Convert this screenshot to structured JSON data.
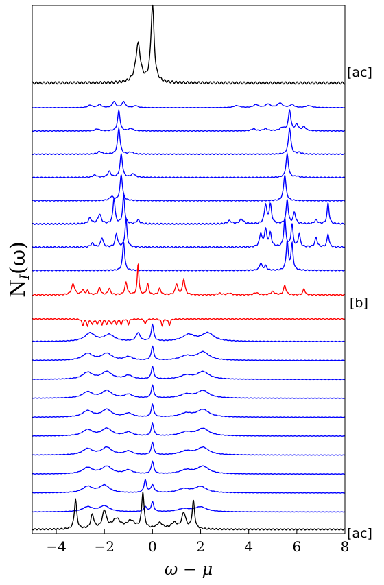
{
  "chart_data": {
    "type": "line",
    "title": "",
    "xlabel": "ω − μ",
    "ylabel": "N_I(ω)",
    "xlim": [
      -5,
      8
    ],
    "x_ticks": [
      -4,
      -2,
      0,
      2,
      4,
      6,
      8
    ],
    "grid": false,
    "legend": "none",
    "curve_labels": [
      {
        "text": "[ac]",
        "attach": "top-curve"
      },
      {
        "text": "[b]",
        "attach": "red-curves"
      },
      {
        "text": "[ac]",
        "attach": "bottom-curve"
      }
    ],
    "series": [
      {
        "role": "top",
        "color": "#000000",
        "baseline_rank": 0,
        "amp": 1.0,
        "peaks": [
          [
            -0.6,
            0.5,
            0.12
          ],
          [
            0.0,
            1.0,
            0.08
          ]
        ]
      },
      {
        "role": "stack",
        "color": "#0000ff",
        "baseline_rank": 1,
        "amp": 0.35,
        "peaks": [
          [
            -2.6,
            0.25,
            0.1
          ],
          [
            -2.2,
            0.3,
            0.1
          ],
          [
            -1.6,
            0.6,
            0.08
          ],
          [
            -1.2,
            0.6,
            0.08
          ],
          [
            -0.7,
            0.2,
            0.1
          ],
          [
            3.5,
            0.2,
            0.15
          ],
          [
            4.3,
            0.3,
            0.12
          ],
          [
            4.8,
            0.35,
            0.12
          ],
          [
            5.3,
            0.45,
            0.12
          ],
          [
            5.8,
            0.3,
            0.1
          ],
          [
            6.5,
            0.2,
            0.15
          ]
        ]
      },
      {
        "role": "stack",
        "color": "#0000ff",
        "baseline_rank": 2,
        "amp": 0.7,
        "peaks": [
          [
            -2.3,
            0.1,
            0.1
          ],
          [
            -1.4,
            1.0,
            0.06
          ],
          [
            -0.9,
            0.12,
            0.1
          ],
          [
            4.2,
            0.1,
            0.1
          ],
          [
            4.7,
            0.1,
            0.1
          ],
          [
            5.4,
            0.15,
            0.12
          ],
          [
            5.7,
            1.0,
            0.06
          ],
          [
            6.0,
            0.3,
            0.08
          ],
          [
            6.3,
            0.2,
            0.08
          ]
        ]
      },
      {
        "role": "stack",
        "color": "#0000ff",
        "baseline_rank": 3,
        "amp": 0.9,
        "peaks": [
          [
            -2.2,
            0.1,
            0.1
          ],
          [
            -1.4,
            1.0,
            0.06
          ],
          [
            -0.9,
            0.08,
            0.1
          ],
          [
            5.7,
            1.0,
            0.06
          ],
          [
            6.1,
            0.06,
            0.1
          ]
        ]
      },
      {
        "role": "stack",
        "color": "#0000ff",
        "baseline_rank": 4,
        "amp": 0.8,
        "peaks": [
          [
            -2.4,
            0.1,
            0.1
          ],
          [
            -1.8,
            0.25,
            0.08
          ],
          [
            -1.3,
            1.0,
            0.06
          ],
          [
            -0.8,
            0.15,
            0.1
          ],
          [
            5.6,
            1.0,
            0.06
          ],
          [
            6.0,
            0.05,
            0.1
          ]
        ]
      },
      {
        "role": "stack",
        "color": "#0000ff",
        "baseline_rank": 5,
        "amp": 0.9,
        "peaks": [
          [
            -1.7,
            0.15,
            0.1
          ],
          [
            -1.3,
            1.0,
            0.06
          ],
          [
            5.5,
            1.0,
            0.06
          ]
        ]
      },
      {
        "role": "stack",
        "color": "#0000ff",
        "baseline_rank": 6,
        "amp": 1.3,
        "peaks": [
          [
            -2.6,
            0.15,
            0.08
          ],
          [
            -2.2,
            0.25,
            0.08
          ],
          [
            -1.6,
            0.7,
            0.05
          ],
          [
            -1.2,
            0.75,
            0.05
          ],
          [
            -0.6,
            0.1,
            0.08
          ],
          [
            3.2,
            0.08,
            0.1
          ],
          [
            3.7,
            0.12,
            0.1
          ],
          [
            4.7,
            0.5,
            0.06
          ],
          [
            4.9,
            0.5,
            0.06
          ],
          [
            5.6,
            0.65,
            0.05
          ],
          [
            5.9,
            0.3,
            0.06
          ],
          [
            6.8,
            0.1,
            0.08
          ],
          [
            7.3,
            0.55,
            0.05
          ]
        ]
      },
      {
        "role": "stack",
        "color": "#0000ff",
        "baseline_rank": 7,
        "amp": 1.3,
        "peaks": [
          [
            -2.5,
            0.1,
            0.08
          ],
          [
            -2.1,
            0.25,
            0.06
          ],
          [
            -1.5,
            0.35,
            0.06
          ],
          [
            -1.1,
            0.75,
            0.05
          ],
          [
            4.5,
            0.35,
            0.06
          ],
          [
            4.7,
            0.45,
            0.06
          ],
          [
            4.9,
            0.35,
            0.06
          ],
          [
            5.5,
            0.75,
            0.05
          ],
          [
            5.8,
            0.6,
            0.05
          ],
          [
            6.1,
            0.35,
            0.05
          ],
          [
            6.8,
            0.25,
            0.06
          ],
          [
            7.3,
            0.35,
            0.05
          ]
        ]
      },
      {
        "role": "stack",
        "color": "#0000ff",
        "baseline_rank": 8,
        "amp": 1.0,
        "peaks": [
          [
            -1.2,
            1.0,
            0.05
          ],
          [
            4.5,
            0.25,
            0.06
          ],
          [
            4.7,
            0.15,
            0.06
          ],
          [
            5.6,
            1.0,
            0.05
          ],
          [
            5.8,
            0.9,
            0.05
          ]
        ]
      },
      {
        "role": "red-upper",
        "color": "#ff0000",
        "baseline_rank": 9,
        "amp": 1.25,
        "peaks": [
          [
            -3.3,
            0.35,
            0.08
          ],
          [
            -2.9,
            0.15,
            0.06
          ],
          [
            -2.7,
            0.12,
            0.06
          ],
          [
            -2.2,
            0.22,
            0.06
          ],
          [
            -1.8,
            0.2,
            0.06
          ],
          [
            -1.1,
            0.4,
            0.06
          ],
          [
            -0.6,
            1.0,
            0.04
          ],
          [
            -0.2,
            0.35,
            0.05
          ],
          [
            0.3,
            0.2,
            0.06
          ],
          [
            1.0,
            0.35,
            0.06
          ],
          [
            1.3,
            0.5,
            0.06
          ],
          [
            2.8,
            0.05,
            0.1
          ],
          [
            3.2,
            0.05,
            0.1
          ],
          [
            4.3,
            0.07,
            0.1
          ],
          [
            5.0,
            0.1,
            0.1
          ],
          [
            5.5,
            0.3,
            0.06
          ],
          [
            6.3,
            0.2,
            0.05
          ]
        ]
      },
      {
        "role": "red-lower",
        "color": "#ff0000",
        "baseline_rank": 10,
        "amp": 1.0,
        "peaks": [
          [
            -2.9,
            0.25,
            0.04
          ],
          [
            -2.7,
            0.25,
            0.04
          ],
          [
            -2.5,
            0.2,
            0.04
          ],
          [
            -2.3,
            0.2,
            0.04
          ],
          [
            -2.1,
            0.2,
            0.04
          ],
          [
            -1.9,
            0.2,
            0.04
          ],
          [
            -1.7,
            0.2,
            0.04
          ],
          [
            -1.5,
            0.2,
            0.04
          ],
          [
            -1.3,
            0.2,
            0.04
          ],
          [
            -1.0,
            0.2,
            0.04
          ],
          [
            -0.3,
            0.2,
            0.04
          ],
          [
            0.4,
            0.25,
            0.04
          ],
          [
            0.7,
            0.25,
            0.04
          ]
        ]
      },
      {
        "role": "stack-wide",
        "color": "#0000ff",
        "baseline_rank": 11,
        "amp": 0.6,
        "peaks": [
          [
            -2.6,
            0.5,
            0.25
          ],
          [
            -1.8,
            0.4,
            0.25
          ],
          [
            -0.6,
            0.5,
            0.1
          ],
          [
            0.0,
            1.0,
            0.06
          ],
          [
            1.5,
            0.4,
            0.3
          ],
          [
            2.3,
            0.5,
            0.3
          ]
        ]
      },
      {
        "role": "stack-wide",
        "color": "#0000ff",
        "baseline_rank": 12,
        "amp": 0.5,
        "peaks": [
          [
            -2.7,
            0.5,
            0.25
          ],
          [
            -1.9,
            0.5,
            0.25
          ],
          [
            -1.0,
            0.25,
            0.2
          ],
          [
            0.0,
            1.0,
            0.06
          ],
          [
            1.4,
            0.3,
            0.3
          ],
          [
            2.1,
            0.6,
            0.3
          ]
        ]
      },
      {
        "role": "stack-wide",
        "color": "#0000ff",
        "baseline_rank": 13,
        "amp": 0.45,
        "peaks": [
          [
            -2.7,
            0.55,
            0.25
          ],
          [
            -1.9,
            0.6,
            0.25
          ],
          [
            -1.0,
            0.3,
            0.2
          ],
          [
            0.0,
            1.0,
            0.06
          ],
          [
            1.4,
            0.3,
            0.3
          ],
          [
            2.1,
            0.6,
            0.3
          ]
        ]
      },
      {
        "role": "stack-wide",
        "color": "#0000ff",
        "baseline_rank": 14,
        "amp": 0.45,
        "peaks": [
          [
            -2.7,
            0.5,
            0.25
          ],
          [
            -1.9,
            0.6,
            0.25
          ],
          [
            -1.0,
            0.3,
            0.2
          ],
          [
            0.0,
            1.0,
            0.06
          ],
          [
            1.4,
            0.3,
            0.3
          ],
          [
            2.1,
            0.6,
            0.3
          ]
        ]
      },
      {
        "role": "stack-wide",
        "color": "#0000ff",
        "baseline_rank": 15,
        "amp": 0.45,
        "peaks": [
          [
            -2.7,
            0.5,
            0.25
          ],
          [
            -1.9,
            0.6,
            0.25
          ],
          [
            -1.0,
            0.3,
            0.2
          ],
          [
            0.0,
            1.0,
            0.06
          ],
          [
            1.4,
            0.3,
            0.3
          ],
          [
            2.1,
            0.6,
            0.3
          ]
        ]
      },
      {
        "role": "stack-wide",
        "color": "#0000ff",
        "baseline_rank": 16,
        "amp": 0.45,
        "peaks": [
          [
            -2.7,
            0.5,
            0.25
          ],
          [
            -1.9,
            0.6,
            0.25
          ],
          [
            -1.0,
            0.3,
            0.2
          ],
          [
            0.0,
            1.0,
            0.06
          ],
          [
            1.4,
            0.3,
            0.3
          ],
          [
            2.1,
            0.6,
            0.3
          ]
        ]
      },
      {
        "role": "stack-wide",
        "color": "#0000ff",
        "baseline_rank": 17,
        "amp": 0.45,
        "peaks": [
          [
            -2.7,
            0.5,
            0.25
          ],
          [
            -1.9,
            0.6,
            0.25
          ],
          [
            -1.0,
            0.3,
            0.2
          ],
          [
            0.0,
            1.0,
            0.06
          ],
          [
            1.4,
            0.3,
            0.3
          ],
          [
            2.1,
            0.6,
            0.3
          ]
        ]
      },
      {
        "role": "stack-wide",
        "color": "#0000ff",
        "baseline_rank": 18,
        "amp": 0.45,
        "peaks": [
          [
            -2.7,
            0.5,
            0.25
          ],
          [
            -1.9,
            0.6,
            0.25
          ],
          [
            -1.0,
            0.3,
            0.2
          ],
          [
            0.0,
            1.0,
            0.06
          ],
          [
            1.4,
            0.3,
            0.3
          ],
          [
            2.1,
            0.6,
            0.3
          ]
        ]
      },
      {
        "role": "stack-wide",
        "color": "#0000ff",
        "baseline_rank": 19,
        "amp": 0.45,
        "peaks": [
          [
            -2.7,
            0.5,
            0.25
          ],
          [
            -2.0,
            0.6,
            0.25
          ],
          [
            -0.3,
            1.0,
            0.06
          ],
          [
            0.0,
            0.6,
            0.08
          ],
          [
            1.3,
            0.3,
            0.3
          ],
          [
            2.0,
            0.5,
            0.3
          ]
        ]
      },
      {
        "role": "stack-wide",
        "color": "#0000ff",
        "baseline_rank": 20,
        "amp": 0.35,
        "peaks": [
          [
            -2.7,
            0.5,
            0.25
          ],
          [
            -2.0,
            0.6,
            0.25
          ],
          [
            -0.3,
            0.5,
            0.08
          ],
          [
            0.0,
            1.0,
            0.06
          ],
          [
            1.3,
            0.3,
            0.3
          ],
          [
            2.0,
            0.5,
            0.3
          ]
        ]
      },
      {
        "role": "bottom",
        "color": "#000000",
        "baseline_rank": 21,
        "amp": 0.9,
        "peaks": [
          [
            -3.2,
            0.75,
            0.06
          ],
          [
            -2.5,
            0.35,
            0.08
          ],
          [
            -2.0,
            0.45,
            0.1
          ],
          [
            -1.5,
            0.25,
            0.2
          ],
          [
            -0.9,
            0.2,
            0.2
          ],
          [
            -0.4,
            0.9,
            0.06
          ],
          [
            0.3,
            0.15,
            0.15
          ],
          [
            0.9,
            0.15,
            0.15
          ],
          [
            1.3,
            0.4,
            0.1
          ],
          [
            1.7,
            0.7,
            0.06
          ]
        ]
      }
    ]
  }
}
